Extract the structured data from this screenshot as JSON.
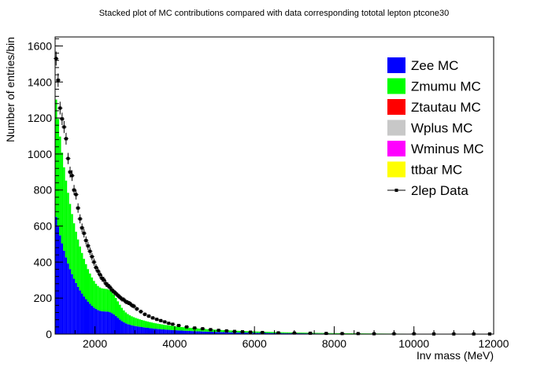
{
  "chart_data": {
    "type": "bar",
    "title": "Stacked plot of MC contributions compared with data corresponding tototal lepton ptcone30",
    "xlabel": "Inv mass (MeV)",
    "ylabel": "Number of entries/bin",
    "xlim": [
      1000,
      12000
    ],
    "ylim": [
      0,
      1650
    ],
    "xticks": [
      2000,
      4000,
      6000,
      8000,
      10000,
      12000
    ],
    "yticks": [
      0,
      200,
      400,
      600,
      800,
      1000,
      1200,
      1400,
      1600
    ],
    "grid": false,
    "legend_position": "top-right",
    "bin_width": 50,
    "bins_lo_hi": [
      1000,
      12000
    ],
    "series_mc": [
      {
        "name": "Zee MC",
        "color": "#0000ff",
        "params": {
          "a": 590,
          "tau": 520,
          "b": 90,
          "tau2": 2000,
          "offset": 1000
        }
      },
      {
        "name": "Zmumu MC",
        "color": "#00ff00",
        "params": {
          "a": 590,
          "tau": 520,
          "b": 90,
          "tau2": 2000,
          "offset": 1000
        }
      },
      {
        "name": "Ztautau MC",
        "color": "#ff0000"
      },
      {
        "name": "Wplus MC",
        "color": "#c8c8c8"
      },
      {
        "name": "Wminus MC",
        "color": "#ff00ff"
      },
      {
        "name": "ttbar MC",
        "color": "#ffff00"
      }
    ],
    "data_series": {
      "name": "2lep Data",
      "color": "#000000",
      "points": [
        [
          1025,
          1530
        ],
        [
          1075,
          1410
        ],
        [
          1125,
          1255
        ],
        [
          1175,
          1195
        ],
        [
          1225,
          1150
        ],
        [
          1275,
          1085
        ],
        [
          1325,
          975
        ],
        [
          1375,
          900
        ],
        [
          1425,
          880
        ],
        [
          1475,
          800
        ],
        [
          1525,
          775
        ],
        [
          1575,
          700
        ],
        [
          1625,
          640
        ],
        [
          1675,
          590
        ],
        [
          1725,
          560
        ],
        [
          1775,
          520
        ],
        [
          1825,
          490
        ],
        [
          1875,
          460
        ],
        [
          1925,
          430
        ],
        [
          1975,
          400
        ],
        [
          2025,
          370
        ],
        [
          2075,
          350
        ],
        [
          2125,
          330
        ],
        [
          2175,
          310
        ],
        [
          2225,
          300
        ],
        [
          2275,
          280
        ],
        [
          2325,
          270
        ],
        [
          2375,
          260
        ],
        [
          2425,
          245
        ],
        [
          2475,
          235
        ],
        [
          2525,
          225
        ],
        [
          2575,
          215
        ],
        [
          2625,
          205
        ],
        [
          2675,
          195
        ],
        [
          2725,
          190
        ],
        [
          2775,
          180
        ],
        [
          2825,
          175
        ],
        [
          2875,
          170
        ],
        [
          2925,
          160
        ],
        [
          2975,
          155
        ],
        [
          3050,
          140
        ],
        [
          3150,
          125
        ],
        [
          3250,
          110
        ],
        [
          3350,
          100
        ],
        [
          3450,
          90
        ],
        [
          3550,
          82
        ],
        [
          3650,
          75
        ],
        [
          3750,
          68
        ],
        [
          3850,
          60
        ],
        [
          3950,
          55
        ],
        [
          4100,
          48
        ],
        [
          4300,
          40
        ],
        [
          4500,
          34
        ],
        [
          4700,
          30
        ],
        [
          4900,
          25
        ],
        [
          5100,
          21
        ],
        [
          5300,
          18
        ],
        [
          5500,
          15
        ],
        [
          5700,
          13
        ],
        [
          5900,
          11
        ],
        [
          6200,
          9
        ],
        [
          6600,
          7
        ],
        [
          7000,
          6
        ],
        [
          7400,
          5
        ],
        [
          7800,
          4
        ],
        [
          8200,
          3
        ],
        [
          8600,
          3
        ],
        [
          9000,
          2
        ],
        [
          9500,
          2
        ],
        [
          10000,
          2
        ],
        [
          10500,
          1
        ],
        [
          11000,
          1
        ],
        [
          11500,
          1
        ],
        [
          11900,
          1
        ]
      ]
    }
  }
}
